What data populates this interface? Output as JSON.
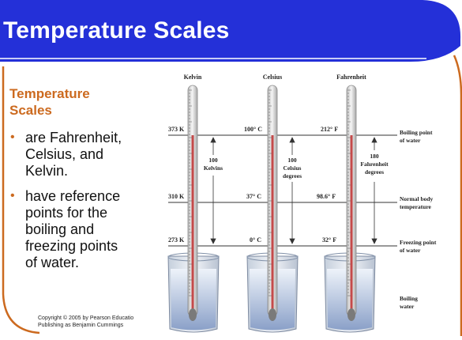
{
  "slide": {
    "title": "Temperature Scales",
    "subtitle_line1": "Temperature",
    "subtitle_line2": "Scales",
    "bullets": [
      {
        "lines": [
          "are Fahrenheit,",
          "Celsius, and",
          "Kelvin."
        ]
      },
      {
        "lines": [
          "have reference",
          "points for the",
          "boiling and",
          "freezing points",
          "of water."
        ]
      }
    ],
    "copyright_line1": "Copyright © 2005 by Pearson Educatio",
    "copyright_line2": "Publishing as Benjamin Cummings",
    "colors": {
      "title_bar": "#2430d8",
      "accent": "#cc6a1f"
    }
  },
  "figure": {
    "scales": [
      {
        "name": "Kelvin",
        "boiling": "373 K",
        "body": "310 K",
        "freezing": "273 K",
        "span_line1": "100",
        "span_line2": "Kelvins",
        "span_line3": ""
      },
      {
        "name": "Celsius",
        "boiling": "100° C",
        "body": "37° C",
        "freezing": "0° C",
        "span_line1": "100",
        "span_line2": "Celsius",
        "span_line3": "degrees"
      },
      {
        "name": "Fahrenheit",
        "boiling": "212° F",
        "body": "98.6° F",
        "freezing": "32° F",
        "span_line1": "180",
        "span_line2": "Fahrenheit",
        "span_line3": "degrees"
      }
    ],
    "labels": {
      "boiling_line1": "Boiling point",
      "boiling_line2": "of water",
      "body_line1": "Normal body",
      "body_line2": "temperature",
      "freezing_line1": "Freezing point",
      "freezing_line2": "of water",
      "bath_line1": "Boiling",
      "bath_line2": "water"
    }
  }
}
